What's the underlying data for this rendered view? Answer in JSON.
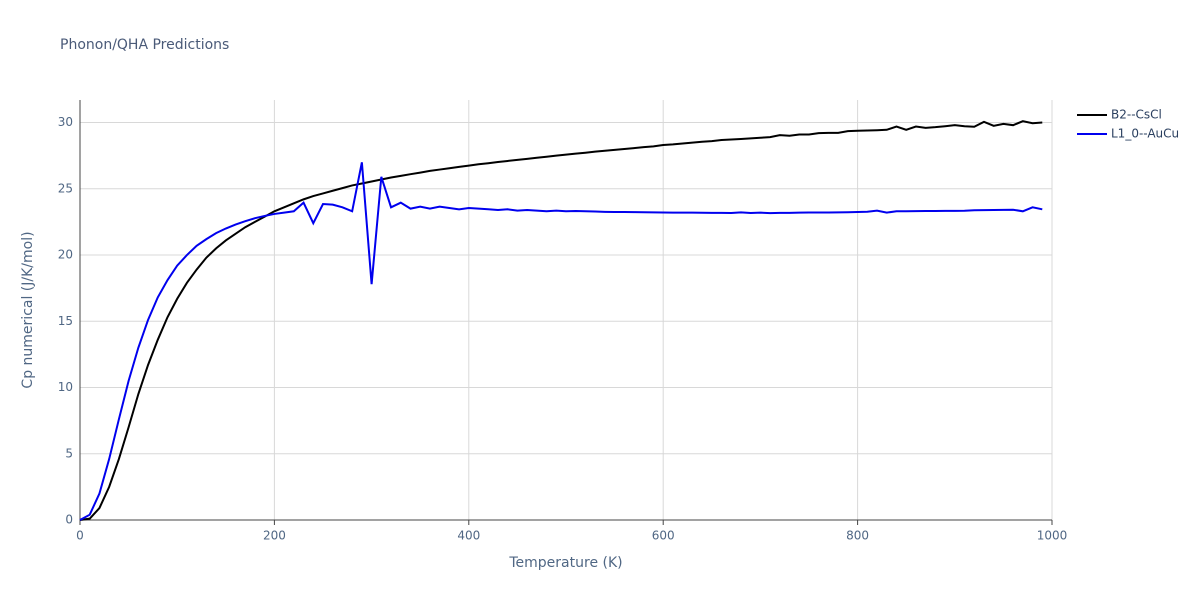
{
  "chart_data": {
    "type": "line",
    "title": "Phonon/QHA Predictions",
    "x_label": "Temperature (K)",
    "y_label": "Cp numerical (J/K/mol)",
    "x": [
      0,
      10,
      20,
      30,
      40,
      50,
      60,
      70,
      80,
      90,
      100,
      110,
      120,
      130,
      140,
      150,
      160,
      170,
      180,
      190,
      200,
      210,
      220,
      230,
      240,
      250,
      260,
      270,
      280,
      290,
      300,
      310,
      320,
      330,
      340,
      350,
      360,
      370,
      380,
      390,
      400,
      410,
      420,
      430,
      440,
      450,
      460,
      470,
      480,
      490,
      500,
      510,
      520,
      530,
      540,
      550,
      560,
      570,
      580,
      590,
      600,
      610,
      620,
      630,
      640,
      650,
      660,
      670,
      680,
      690,
      700,
      710,
      720,
      730,
      740,
      750,
      760,
      770,
      780,
      790,
      800,
      810,
      820,
      830,
      840,
      850,
      860,
      870,
      880,
      890,
      900,
      910,
      920,
      930,
      940,
      950,
      960,
      970,
      980,
      990
    ],
    "series": [
      {
        "name": "B2--CsCl",
        "color": "#000000",
        "values": [
          0,
          0.1,
          0.9,
          2.5,
          4.6,
          7.0,
          9.5,
          11.7,
          13.6,
          15.3,
          16.7,
          17.9,
          18.9,
          19.8,
          20.5,
          21.1,
          21.6,
          22.1,
          22.5,
          22.9,
          23.3,
          23.6,
          23.9,
          24.2,
          24.45,
          24.65,
          24.85,
          25.05,
          25.25,
          25.4,
          25.55,
          25.7,
          25.85,
          25.97,
          26.1,
          26.22,
          26.35,
          26.45,
          26.55,
          26.65,
          26.75,
          26.85,
          26.93,
          27.02,
          27.1,
          27.18,
          27.26,
          27.34,
          27.42,
          27.5,
          27.58,
          27.65,
          27.72,
          27.8,
          27.87,
          27.94,
          28.0,
          28.07,
          28.14,
          28.2,
          28.3,
          28.35,
          28.42,
          28.48,
          28.55,
          28.6,
          28.68,
          28.72,
          28.76,
          28.8,
          28.85,
          28.9,
          29.05,
          29.0,
          29.1,
          29.1,
          29.2,
          29.22,
          29.22,
          29.35,
          29.38,
          29.4,
          29.42,
          29.45,
          29.7,
          29.45,
          29.7,
          29.6,
          29.65,
          29.72,
          29.8,
          29.72,
          29.68,
          30.05,
          29.75,
          29.9,
          29.8,
          30.1,
          29.95,
          30.0
        ]
      },
      {
        "name": "L1_0--AuCu",
        "color": "#0000ee",
        "values": [
          0,
          0.4,
          2.0,
          4.6,
          7.6,
          10.5,
          13.0,
          15.1,
          16.8,
          18.1,
          19.2,
          20.0,
          20.7,
          21.2,
          21.65,
          22.0,
          22.3,
          22.55,
          22.78,
          22.95,
          23.1,
          23.2,
          23.3,
          23.95,
          22.4,
          23.85,
          23.8,
          23.6,
          23.3,
          27.0,
          17.8,
          25.9,
          23.6,
          23.95,
          23.5,
          23.65,
          23.5,
          23.65,
          23.55,
          23.45,
          23.55,
          23.5,
          23.45,
          23.4,
          23.45,
          23.35,
          23.4,
          23.35,
          23.3,
          23.35,
          23.3,
          23.32,
          23.3,
          23.28,
          23.26,
          23.25,
          23.25,
          23.24,
          23.23,
          23.22,
          23.21,
          23.2,
          23.2,
          23.2,
          23.19,
          23.18,
          23.18,
          23.17,
          23.22,
          23.17,
          23.2,
          23.16,
          23.18,
          23.18,
          23.2,
          23.21,
          23.21,
          23.21,
          23.22,
          23.23,
          23.25,
          23.27,
          23.35,
          23.2,
          23.3,
          23.3,
          23.31,
          23.32,
          23.32,
          23.33,
          23.33,
          23.34,
          23.38,
          23.39,
          23.4,
          23.41,
          23.42,
          23.3,
          23.6,
          23.45
        ]
      }
    ],
    "xlim": [
      0,
      1000
    ],
    "xticks": [
      0,
      200,
      400,
      600,
      800,
      1000
    ],
    "ylim": [
      0,
      31.7
    ],
    "yticks": [
      0,
      5,
      10,
      15,
      20,
      25,
      30
    ],
    "grid": true,
    "legend": "right"
  }
}
